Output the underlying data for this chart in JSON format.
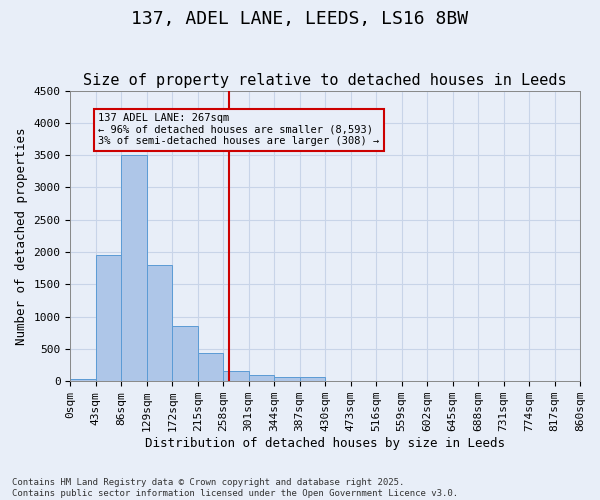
{
  "title": "137, ADEL LANE, LEEDS, LS16 8BW",
  "subtitle": "Size of property relative to detached houses in Leeds",
  "xlabel": "Distribution of detached houses by size in Leeds",
  "ylabel": "Number of detached properties",
  "bin_labels": [
    "0sqm",
    "43sqm",
    "86sqm",
    "129sqm",
    "172sqm",
    "215sqm",
    "258sqm",
    "301sqm",
    "344sqm",
    "387sqm",
    "430sqm",
    "473sqm",
    "516sqm",
    "559sqm",
    "602sqm",
    "645sqm",
    "688sqm",
    "731sqm",
    "774sqm",
    "817sqm",
    "860sqm"
  ],
  "bar_heights": [
    30,
    1950,
    3500,
    1800,
    850,
    430,
    160,
    100,
    70,
    60,
    0,
    0,
    0,
    0,
    0,
    0,
    0,
    0,
    0,
    0
  ],
  "bar_color": "#aec6e8",
  "bar_edge_color": "#5b9bd5",
  "grid_color": "#c8d4e8",
  "bg_color": "#e8eef8",
  "vline_x": 6.22,
  "vline_color": "#cc0000",
  "annotation_text": "137 ADEL LANE: 267sqm\n← 96% of detached houses are smaller (8,593)\n3% of semi-detached houses are larger (308) →",
  "annotation_box_color": "#cc0000",
  "ylim": [
    0,
    4500
  ],
  "yticks": [
    0,
    500,
    1000,
    1500,
    2000,
    2500,
    3000,
    3500,
    4000,
    4500
  ],
  "footnote": "Contains HM Land Registry data © Crown copyright and database right 2025.\nContains public sector information licensed under the Open Government Licence v3.0.",
  "title_fontsize": 13,
  "subtitle_fontsize": 11,
  "axis_label_fontsize": 9,
  "tick_fontsize": 8
}
